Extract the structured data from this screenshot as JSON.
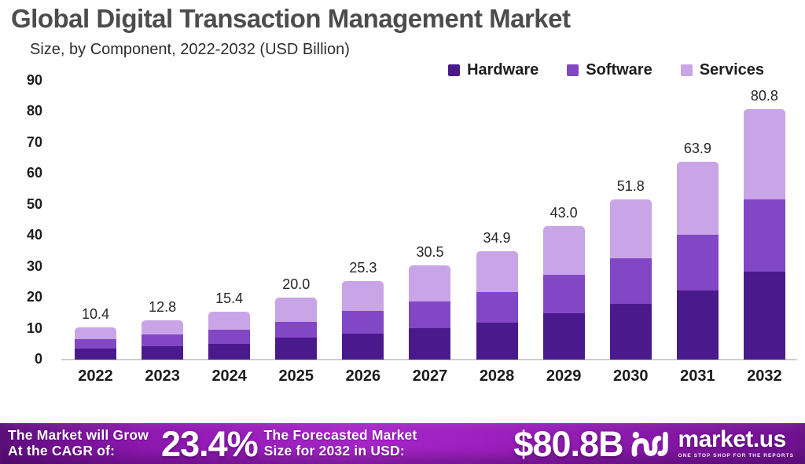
{
  "header": {
    "title": "Global Digital Transaction Management Market",
    "subtitle": "Size, by Component, 2022-2032 (USD Billion)"
  },
  "chart_data": {
    "type": "bar",
    "stacked": true,
    "title": "Global Digital Transaction Management Market",
    "subtitle": "Size, by Component, 2022-2032 (USD Billion)",
    "xlabel": "",
    "ylabel": "USD Billion",
    "ylim": [
      0,
      90
    ],
    "yticks": [
      0,
      10,
      20,
      30,
      40,
      50,
      60,
      70,
      80,
      90
    ],
    "grid": false,
    "legend_position": "top-right",
    "categories": [
      "2022",
      "2023",
      "2024",
      "2025",
      "2026",
      "2027",
      "2028",
      "2029",
      "2030",
      "2031",
      "2032"
    ],
    "series": [
      {
        "name": "Hardware",
        "color": "#4a1a8c",
        "values": [
          3.5,
          4.3,
          5.2,
          7.0,
          8.4,
          10.1,
          11.9,
          14.9,
          17.9,
          22.4,
          28.3
        ]
      },
      {
        "name": "Software",
        "color": "#8147c5",
        "values": [
          3.1,
          3.7,
          4.4,
          5.2,
          7.3,
          8.8,
          9.8,
          12.4,
          14.9,
          17.8,
          23.5
        ]
      },
      {
        "name": "Services",
        "color": "#c9a4e6",
        "values": [
          3.8,
          4.8,
          5.8,
          7.8,
          9.6,
          11.6,
          13.2,
          15.7,
          19.0,
          23.7,
          29.0
        ]
      }
    ],
    "totals_labels": [
      "10.4",
      "12.8",
      "15.4",
      "20.0",
      "25.3",
      "30.5",
      "34.9",
      "43.0",
      "51.8",
      "63.9",
      "80.8"
    ]
  },
  "banner": {
    "left_line1": "The Market will Grow",
    "left_line2": "At the CAGR of:",
    "cagr": "23.4%",
    "mid_line1": "The Forecasted Market",
    "mid_line2": "Size for 2032 in USD:",
    "value": "$80.8B",
    "brand": "market.us",
    "tagline": "ONE STOP SHOP FOR THE REPORTS",
    "background_start": "#5e0e7d",
    "background_mid": "#a726c9",
    "background_end": "#6f1190",
    "text_color": "#ffffff"
  },
  "colors": {
    "title_text": "#4c4c4c",
    "axis_text": "#1d1d1d",
    "baseline": "#cdcdcd",
    "background": "#ffffff"
  }
}
